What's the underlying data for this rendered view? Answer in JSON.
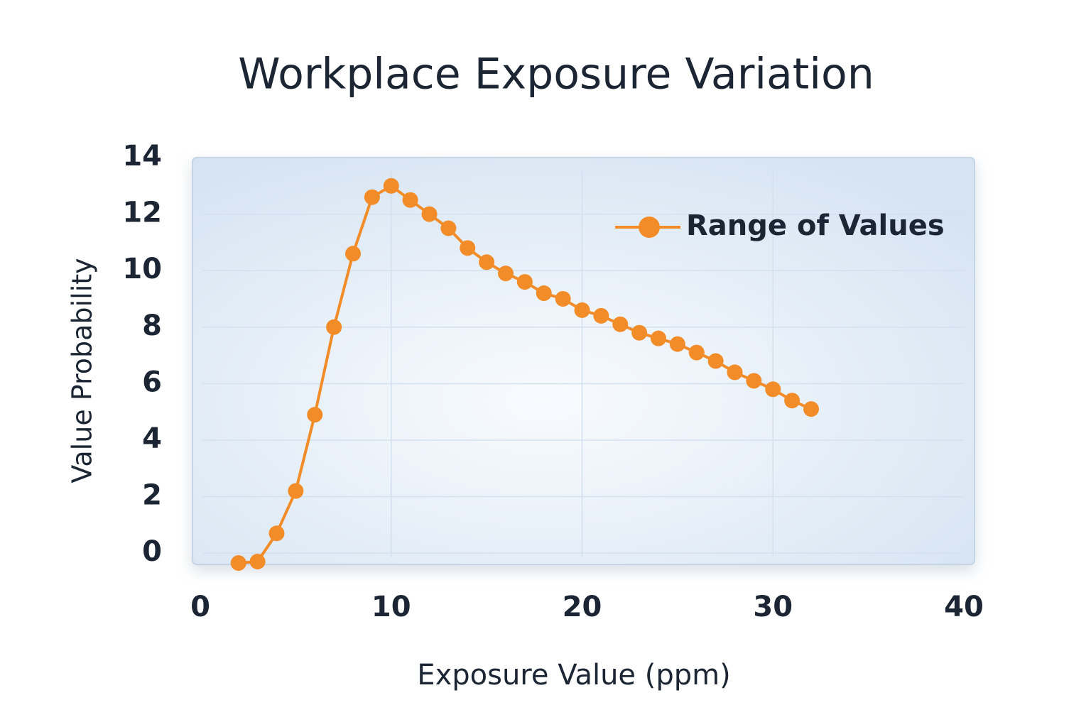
{
  "chart_data": {
    "type": "line",
    "title": "Workplace Exposure Variation",
    "xlabel": "Exposure Value (ppm)",
    "ylabel": "Value Probability",
    "x": [
      2,
      3,
      4,
      5,
      6,
      7,
      8,
      9,
      10,
      11,
      12,
      13,
      14,
      15,
      16,
      17,
      18,
      19,
      20,
      21,
      22,
      23,
      24,
      25,
      26,
      27,
      28,
      29,
      30,
      31,
      32
    ],
    "series": [
      {
        "name": "Range of Values",
        "color": "#f28c28",
        "values": [
          -0.35,
          -0.3,
          0.7,
          2.2,
          4.9,
          8.0,
          10.6,
          12.6,
          13.0,
          12.5,
          12.0,
          11.5,
          10.8,
          10.3,
          9.9,
          9.6,
          9.2,
          9.0,
          8.6,
          8.4,
          8.1,
          7.8,
          7.6,
          7.4,
          7.1,
          6.8,
          6.4,
          6.1,
          5.8,
          5.4,
          5.1
        ]
      }
    ],
    "xlim": [
      0,
      40
    ],
    "xticks": [
      0,
      10,
      20,
      30,
      40
    ],
    "ylim": [
      -0.4,
      14
    ],
    "yticks": [
      0,
      2,
      4,
      6,
      8,
      10,
      12,
      14
    ],
    "grid": true,
    "legend": "upper right"
  }
}
